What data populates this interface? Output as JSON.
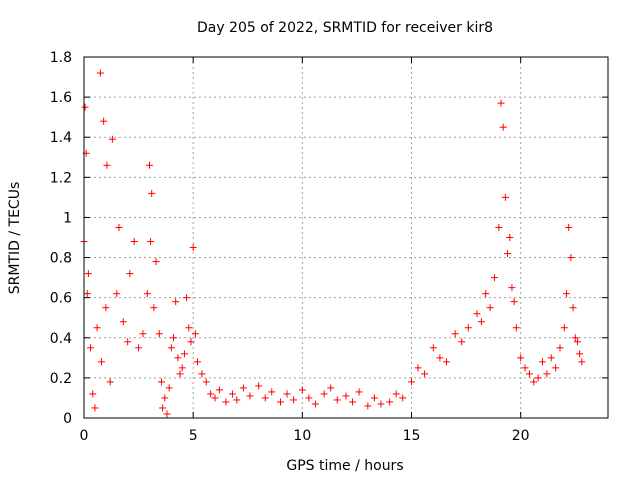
{
  "chart_data": {
    "type": "scatter",
    "title": "Day 205 of 2022, SRMTID for receiver kir8",
    "xlabel": "GPS time / hours",
    "ylabel": "SRMTID / TECUs",
    "xlim": [
      0,
      24
    ],
    "ylim": [
      0,
      1.8
    ],
    "xticks": [
      0,
      5,
      10,
      15,
      20
    ],
    "xtick_labels": [
      "0",
      "5",
      "10",
      "15",
      "20"
    ],
    "yticks": [
      0,
      0.2,
      0.4,
      0.6,
      0.8,
      1.0,
      1.2,
      1.4,
      1.6,
      1.8
    ],
    "ytick_labels": [
      "0",
      "0.2",
      "0.4",
      "0.6",
      "0.8",
      "1",
      "1.2",
      "1.4",
      "1.6",
      "1.8"
    ],
    "grid": true,
    "marker": "+",
    "color": "#ff0000",
    "series": [
      {
        "name": "SRMTID",
        "x": [
          0.0,
          0.05,
          0.1,
          0.15,
          0.2,
          0.3,
          0.4,
          0.5,
          0.6,
          0.75,
          0.8,
          0.9,
          1.0,
          1.05,
          1.2,
          1.3,
          1.5,
          1.6,
          1.8,
          2.0,
          2.1,
          2.3,
          2.5,
          2.7,
          2.9,
          3.0,
          3.05,
          3.1,
          3.2,
          3.3,
          3.45,
          3.55,
          3.6,
          3.7,
          3.8,
          3.9,
          4.0,
          4.1,
          4.2,
          4.3,
          4.4,
          4.5,
          4.6,
          4.7,
          4.8,
          4.9,
          5.0,
          5.1,
          5.2,
          5.4,
          5.6,
          5.8,
          6.0,
          6.2,
          6.5,
          6.8,
          7.0,
          7.3,
          7.6,
          8.0,
          8.3,
          8.6,
          9.0,
          9.3,
          9.6,
          10.0,
          10.3,
          10.6,
          11.0,
          11.3,
          11.6,
          12.0,
          12.3,
          12.6,
          13.0,
          13.3,
          13.6,
          14.0,
          14.3,
          14.6,
          15.0,
          15.3,
          15.6,
          16.0,
          16.3,
          16.6,
          17.0,
          17.3,
          17.6,
          18.0,
          18.2,
          18.4,
          18.6,
          18.8,
          19.0,
          19.1,
          19.2,
          19.3,
          19.4,
          19.5,
          19.6,
          19.7,
          19.8,
          20.0,
          20.2,
          20.4,
          20.6,
          20.8,
          21.0,
          21.2,
          21.4,
          21.6,
          21.8,
          22.0,
          22.1,
          22.2,
          22.3,
          22.4,
          22.5,
          22.6,
          22.7,
          22.8
        ],
        "y": [
          0.88,
          1.55,
          1.32,
          0.62,
          0.72,
          0.35,
          0.12,
          0.05,
          0.45,
          1.72,
          0.28,
          1.48,
          0.55,
          1.26,
          0.18,
          1.39,
          0.62,
          0.95,
          0.48,
          0.38,
          0.72,
          0.88,
          0.35,
          0.42,
          0.62,
          1.26,
          0.88,
          1.12,
          0.55,
          0.78,
          0.42,
          0.18,
          0.05,
          0.1,
          0.02,
          0.15,
          0.35,
          0.4,
          0.58,
          0.3,
          0.22,
          0.25,
          0.32,
          0.6,
          0.45,
          0.38,
          0.85,
          0.42,
          0.28,
          0.22,
          0.18,
          0.12,
          0.1,
          0.14,
          0.08,
          0.12,
          0.09,
          0.15,
          0.11,
          0.16,
          0.1,
          0.13,
          0.08,
          0.12,
          0.09,
          0.14,
          0.1,
          0.07,
          0.12,
          0.15,
          0.09,
          0.11,
          0.08,
          0.13,
          0.06,
          0.1,
          0.07,
          0.08,
          0.12,
          0.1,
          0.18,
          0.25,
          0.22,
          0.35,
          0.3,
          0.28,
          0.42,
          0.38,
          0.45,
          0.52,
          0.48,
          0.62,
          0.55,
          0.7,
          0.95,
          1.57,
          1.45,
          1.1,
          0.82,
          0.9,
          0.65,
          0.58,
          0.45,
          0.3,
          0.25,
          0.22,
          0.18,
          0.2,
          0.28,
          0.22,
          0.3,
          0.25,
          0.35,
          0.45,
          0.62,
          0.95,
          0.8,
          0.55,
          0.4,
          0.38,
          0.32,
          0.28
        ]
      }
    ]
  }
}
